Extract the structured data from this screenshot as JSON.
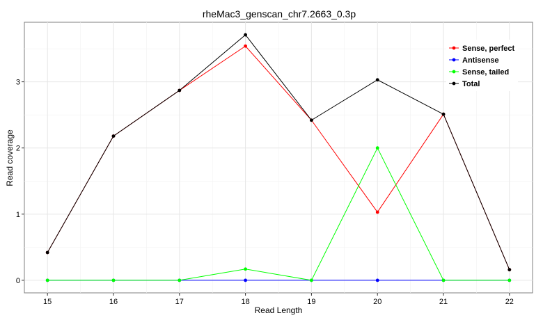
{
  "chart_data": {
    "type": "line",
    "title": "rheMac3_genscan_chr7.2663_0.3p",
    "xlabel": "Read Length",
    "ylabel": "Read coverage",
    "x": [
      15,
      16,
      17,
      18,
      19,
      20,
      21,
      22
    ],
    "xlim": [
      14.65,
      22.35
    ],
    "ylim": [
      -0.19,
      3.9
    ],
    "yticks": [
      0,
      1,
      2,
      3
    ],
    "grid": true,
    "legend_position": "top-right",
    "series": [
      {
        "name": "Sense, perfect",
        "color": "#ff0000",
        "values": [
          0.42,
          2.18,
          2.87,
          3.54,
          2.42,
          1.03,
          2.51,
          0.16
        ]
      },
      {
        "name": "Antisense",
        "color": "#0000ff",
        "values": [
          0,
          0,
          0,
          0,
          0,
          0,
          0,
          0
        ]
      },
      {
        "name": "Sense, tailed",
        "color": "#00ff00",
        "values": [
          0,
          0,
          0,
          0.17,
          0,
          2.0,
          0,
          0
        ]
      },
      {
        "name": "Total",
        "color": "#000000",
        "values": [
          0.42,
          2.18,
          2.87,
          3.71,
          2.42,
          3.03,
          2.51,
          0.16
        ]
      }
    ]
  }
}
